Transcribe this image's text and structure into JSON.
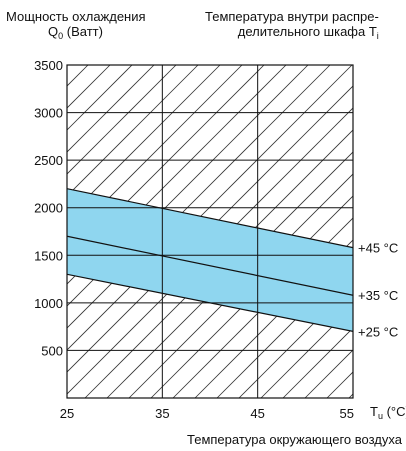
{
  "labels": {
    "ylabel_line1": "Мощность охлаждения",
    "ylabel_q": "Q",
    "ylabel_q_sub": "0",
    "ylabel_unit": " (Ватт)",
    "title_line1": "Температура внутри распре-",
    "title_line2": "делительного шкафа T",
    "title_sub": "i",
    "x_unit_prefix": "T",
    "x_unit_sub": "u",
    "x_unit": " (°C)",
    "xlabel": "Температура окружающего воздуха"
  },
  "chart_data": {
    "type": "line",
    "x_ticks": [
      25,
      35,
      45,
      55
    ],
    "y_ticks": [
      500,
      1000,
      1500,
      2000,
      2500,
      3000,
      3500
    ],
    "xlim": [
      25,
      55
    ],
    "ylim": [
      0,
      3500
    ],
    "grid": true,
    "hatched_background": true,
    "band_color": "#8fd6ef",
    "series": [
      {
        "name": "+45 °C",
        "x": [
          25,
          55
        ],
        "y": [
          2200,
          1580
        ]
      },
      {
        "name": "+35 °C",
        "x": [
          25,
          55
        ],
        "y": [
          1700,
          1080
        ]
      },
      {
        "name": "+25 °C",
        "x": [
          25,
          55
        ],
        "y": [
          1300,
          700
        ]
      }
    ]
  }
}
